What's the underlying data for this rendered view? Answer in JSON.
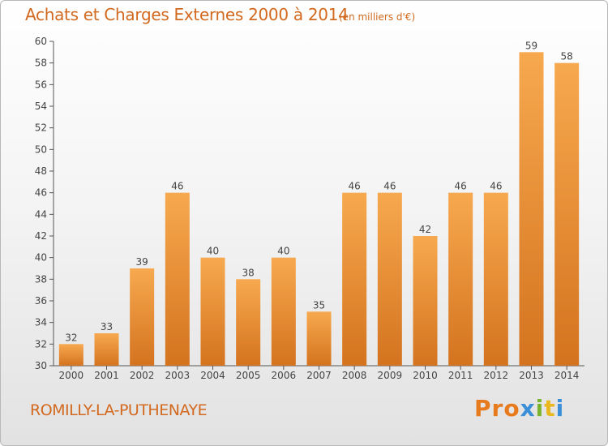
{
  "title": "Achats et Charges Externes 2000 à 2014",
  "subtitle": "(en milliers d'€)",
  "commune": "ROMILLY-LA-PUTHENAYE",
  "logo": "Proxiti",
  "colors": {
    "bar_light": "#f7a94f",
    "bar_dark": "#d4731f",
    "title": "#d2691e",
    "axis": "#555555",
    "logo_letters": [
      "#e87a1e",
      "#e87a1e",
      "#e87a1e",
      "#3a8fd8",
      "#7ab32e",
      "#e8b81e",
      "#3a8fd8"
    ]
  },
  "chart_data": {
    "type": "bar",
    "title": "Achats et Charges Externes 2000 à 2014",
    "subtitle": "(en milliers d'€)",
    "categories": [
      "2000",
      "2001",
      "2002",
      "2003",
      "2004",
      "2005",
      "2006",
      "2007",
      "2008",
      "2009",
      "2010",
      "2011",
      "2012",
      "2013",
      "2014"
    ],
    "values": [
      32,
      33,
      39,
      46,
      40,
      38,
      40,
      35,
      46,
      46,
      42,
      46,
      46,
      59,
      58
    ],
    "ylim": [
      30,
      60
    ],
    "yticks": [
      30,
      32,
      34,
      36,
      38,
      40,
      42,
      44,
      46,
      48,
      50,
      52,
      54,
      56,
      58,
      60
    ],
    "grid": false,
    "data_labels": true
  }
}
